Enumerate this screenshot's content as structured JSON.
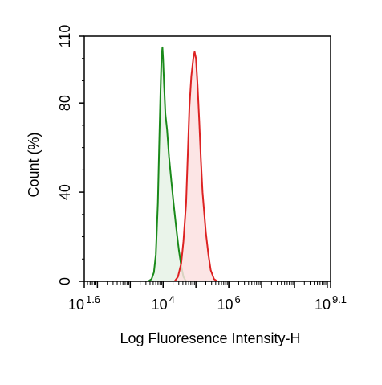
{
  "chart_data": {
    "type": "area",
    "title": "",
    "xlabel": "Log Fluoresence Intensity-H",
    "ylabel": "Count  (%)",
    "x_scale": "log10",
    "xlim": [
      1.6,
      9.1
    ],
    "ylim": [
      0,
      110
    ],
    "x_ticks": [
      {
        "base": "10",
        "exp": "1.6",
        "value": 1.6
      },
      {
        "base": "10",
        "exp": "4",
        "value": 4
      },
      {
        "base": "10",
        "exp": "6",
        "value": 6
      },
      {
        "base": "10",
        "exp": "9.1",
        "value": 9.1
      }
    ],
    "y_ticks": [
      {
        "label": "0",
        "value": 0
      },
      {
        "label": "40",
        "value": 40
      },
      {
        "label": "80",
        "value": 80
      },
      {
        "label": "110",
        "value": 110
      }
    ],
    "grid": false,
    "legend": "none",
    "series": [
      {
        "color": "#1a8a1a",
        "fill": "#e6f2e6",
        "points": [
          [
            3.55,
            0
          ],
          [
            3.65,
            1
          ],
          [
            3.72,
            4
          ],
          [
            3.78,
            12
          ],
          [
            3.84,
            35
          ],
          [
            3.88,
            60
          ],
          [
            3.92,
            85
          ],
          [
            3.95,
            100
          ],
          [
            3.98,
            105
          ],
          [
            4.0,
            100
          ],
          [
            4.03,
            88
          ],
          [
            4.07,
            75
          ],
          [
            4.12,
            68
          ],
          [
            4.18,
            56
          ],
          [
            4.25,
            45
          ],
          [
            4.32,
            35
          ],
          [
            4.4,
            24
          ],
          [
            4.48,
            14
          ],
          [
            4.55,
            7
          ],
          [
            4.62,
            2
          ],
          [
            4.7,
            0
          ]
        ]
      },
      {
        "color": "#dd2222",
        "fill": "#fbe1e1",
        "points": [
          [
            4.35,
            0
          ],
          [
            4.45,
            2
          ],
          [
            4.55,
            8
          ],
          [
            4.62,
            18
          ],
          [
            4.7,
            35
          ],
          [
            4.76,
            60
          ],
          [
            4.8,
            78
          ],
          [
            4.86,
            92
          ],
          [
            4.92,
            100
          ],
          [
            4.96,
            103
          ],
          [
            5.0,
            100
          ],
          [
            5.05,
            88
          ],
          [
            5.1,
            72
          ],
          [
            5.15,
            55
          ],
          [
            5.2,
            40
          ],
          [
            5.3,
            22
          ],
          [
            5.38,
            12
          ],
          [
            5.45,
            5
          ],
          [
            5.55,
            1
          ],
          [
            5.65,
            0
          ]
        ]
      }
    ]
  }
}
